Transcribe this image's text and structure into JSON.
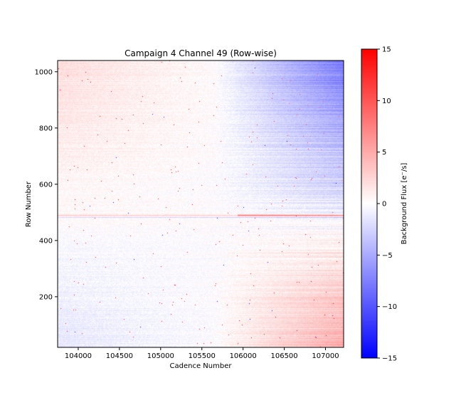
{
  "chart_data": {
    "type": "heatmap",
    "title": "Campaign 4 Channel 49 (Row-wise)",
    "xlabel": "Cadence Number",
    "ylabel": "Row Number",
    "xlim": [
      103750,
      107220
    ],
    "ylim": [
      20,
      1040
    ],
    "x_ticks": [
      104000,
      104500,
      105000,
      105500,
      106000,
      106500,
      107000
    ],
    "y_ticks": [
      200,
      400,
      600,
      800,
      1000
    ],
    "colorbar": {
      "label": "Background Flux [e$^-$/s]",
      "label_display": "Background Flux [e⁻/s]",
      "min": -15,
      "max": 15,
      "ticks": [
        -15,
        -10,
        -5,
        0,
        5,
        10,
        15
      ],
      "colormap": "bwr",
      "low_color": "#0000ff",
      "mid_color": "#ffffff",
      "high_color": "#ff0000"
    },
    "pattern_summary": {
      "upper_rows_early_cadences": 2,
      "upper_rows_late_cadences": -8,
      "lower_rows_early_cadences": -1.5,
      "lower_rows_late_cadences": 5,
      "stripe_row_near": 490
    }
  }
}
